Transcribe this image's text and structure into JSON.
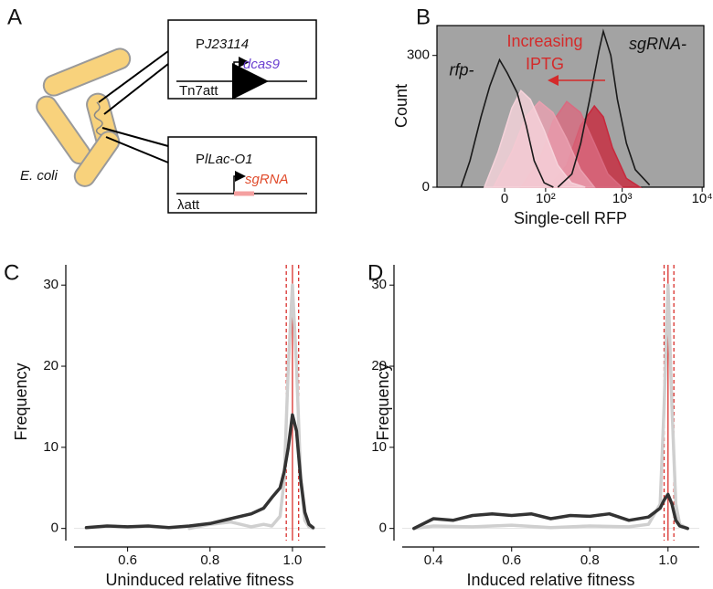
{
  "diagram": {
    "panel_label": "A",
    "organism": "E. coli",
    "constructs": [
      {
        "promoter_prefix": "P",
        "promoter_name": "J23114",
        "gene": "dcas9",
        "site": "Tn7att"
      },
      {
        "promoter_prefix": "P",
        "promoter_name": "lLac-O1",
        "gene": "sgRNA",
        "site": "λatt"
      }
    ]
  },
  "chart_data": [
    {
      "type": "density",
      "panel_label": "B",
      "y_label": "Count",
      "x_label": "Single-cell RFP",
      "xscale": "arcsinh",
      "background": "#a3a3a3",
      "xlim": [
        -234,
        10500
      ],
      "ylim": [
        0,
        368
      ],
      "xticks": [
        0,
        {
          "value": 100,
          "label": "10²"
        },
        {
          "value": 1000,
          "label": "10³"
        },
        {
          "value": 10000,
          "label": "10⁴"
        }
      ],
      "yticks": [
        0,
        300
      ],
      "annotation_lines": [
        "Increasing",
        "IPTG"
      ],
      "annotation_color": "#d42a2a",
      "series": [
        {
          "color": "#c8283c",
          "filled": true,
          "x": [
            111,
            197,
            297,
            446,
            580,
            755,
            1130,
            1670
          ],
          "values": [
            0,
            50,
            140,
            185,
            160,
            90,
            20,
            0
          ]
        },
        {
          "color": "#d96a80",
          "filled": true,
          "x": [
            33,
            80,
            128,
            197,
            297,
            446,
            661,
            985
          ],
          "values": [
            0,
            60,
            150,
            195,
            170,
            100,
            30,
            0
          ]
        },
        {
          "color": "#eaa0b0",
          "filled": true,
          "x": [
            -22,
            14,
            44,
            80,
            128,
            197,
            297,
            446
          ],
          "values": [
            0,
            80,
            160,
            195,
            170,
            110,
            40,
            0
          ]
        },
        {
          "color": "#f6d3db",
          "filled": true,
          "x": [
            -42,
            -13,
            14,
            33,
            55,
            95,
            150,
            227,
            342
          ],
          "values": [
            0,
            80,
            180,
            220,
            200,
            130,
            50,
            10,
            0
          ]
        },
        {
          "name": "rfp-",
          "color": "#1a1a1a",
          "filled": false,
          "x": [
            -110,
            -80,
            -50,
            -30,
            -10,
            5,
            25,
            45,
            65,
            95,
            130
          ],
          "values": [
            0,
            60,
            160,
            230,
            290,
            260,
            215,
            140,
            60,
            10,
            0
          ]
        },
        {
          "name": "sgRNA-",
          "color": "#1a1a1a",
          "filled": false,
          "x": [
            150,
            230,
            300,
            390,
            510,
            580,
            720,
            870,
            1130,
            1460,
            2200
          ],
          "values": [
            0,
            30,
            100,
            200,
            310,
            355,
            300,
            200,
            100,
            40,
            5
          ]
        }
      ]
    },
    {
      "type": "line",
      "panel_label": "C",
      "y_label": "Frequency",
      "x_label": "Uninduced relative fitness",
      "xlim": [
        0.47,
        1.08
      ],
      "ylim": [
        -1.5,
        32.5
      ],
      "xticks": [
        0.6,
        0.8,
        {
          "value": 1,
          "label": "1.0"
        }
      ],
      "yticks": [
        0,
        10,
        20,
        30
      ],
      "reference_lines": [
        {
          "x": 0.985,
          "dashed": true
        },
        {
          "x": 1,
          "dashed": false
        },
        {
          "x": 1.015,
          "dashed": true
        }
      ],
      "reference_color": "#d9302c",
      "series": [
        {
          "color": "#cfcfcf",
          "x": [
            0.75,
            0.8,
            0.85,
            0.9,
            0.93,
            0.95,
            0.97,
            0.98,
            0.99,
            1.0,
            1.01,
            1.02,
            1.03,
            1.04,
            1.05
          ],
          "values": [
            0,
            0.5,
            0.8,
            0.2,
            0.5,
            0.3,
            1.5,
            6,
            20,
            30,
            20,
            6,
            1,
            0.2,
            0
          ]
        },
        {
          "color": "#333333",
          "x": [
            0.5,
            0.55,
            0.6,
            0.65,
            0.7,
            0.75,
            0.8,
            0.85,
            0.9,
            0.93,
            0.95,
            0.97,
            0.98,
            0.99,
            1.0,
            1.01,
            1.02,
            1.03,
            1.04,
            1.05
          ],
          "values": [
            0.1,
            0.3,
            0.2,
            0.3,
            0.1,
            0.3,
            0.6,
            1.2,
            1.8,
            2.5,
            3.8,
            5,
            7,
            10,
            14,
            12,
            6,
            2,
            0.5,
            0.1
          ]
        }
      ]
    },
    {
      "type": "line",
      "panel_label": "D",
      "y_label": "Frequency",
      "x_label": "Induced relative fitness",
      "xlim": [
        0.32,
        1.08
      ],
      "ylim": [
        -1.5,
        32.5
      ],
      "xticks": [
        0.4,
        0.6,
        0.8,
        {
          "value": 1,
          "label": "1.0"
        }
      ],
      "yticks": [
        0,
        10,
        20,
        30
      ],
      "reference_lines": [
        {
          "x": 0.99,
          "dashed": true
        },
        {
          "x": 1,
          "dashed": false
        },
        {
          "x": 1.015,
          "dashed": true
        }
      ],
      "reference_color": "#d9302c",
      "series": [
        {
          "color": "#cfcfcf",
          "x": [
            0.35,
            0.4,
            0.5,
            0.6,
            0.7,
            0.8,
            0.9,
            0.95,
            0.98,
            0.99,
            1.0,
            1.01,
            1.02,
            1.03,
            1.05
          ],
          "values": [
            0,
            0.3,
            0.2,
            0.4,
            0.1,
            0.3,
            0.2,
            0.5,
            3,
            15,
            30,
            15,
            3,
            0.5,
            0
          ]
        },
        {
          "color": "#333333",
          "x": [
            0.35,
            0.4,
            0.45,
            0.5,
            0.55,
            0.6,
            0.65,
            0.7,
            0.75,
            0.8,
            0.85,
            0.9,
            0.95,
            0.98,
            0.99,
            1.0,
            1.01,
            1.02,
            1.03,
            1.05
          ],
          "values": [
            0,
            1.2,
            1.0,
            1.6,
            1.8,
            1.6,
            1.8,
            1.2,
            1.6,
            1.5,
            1.8,
            1.0,
            1.4,
            2.5,
            3.5,
            4.2,
            3,
            1,
            0.3,
            0
          ]
        }
      ]
    }
  ]
}
